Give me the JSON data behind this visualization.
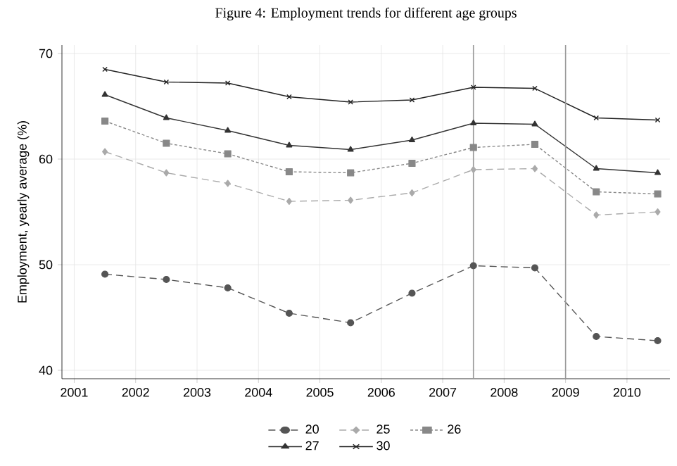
{
  "chart_data": {
    "type": "line",
    "title": "Figure 4: Employment trends for different age groups",
    "ylabel": "Employment, yearly average (%)",
    "x": [
      2001.5,
      2002.5,
      2003.5,
      2004.5,
      2005.5,
      2006.5,
      2007.5,
      2008.5,
      2009.5,
      2010.5
    ],
    "series": [
      {
        "name": "20",
        "color": "#555555",
        "marker": "circle",
        "line_style": "dashed",
        "values": [
          49.1,
          48.6,
          47.8,
          45.4,
          44.5,
          47.3,
          49.9,
          49.7,
          43.2,
          42.8
        ]
      },
      {
        "name": "25",
        "color": "#aaaaaa",
        "marker": "diamond",
        "line_style": "dashed",
        "values": [
          60.7,
          58.7,
          57.7,
          56.0,
          56.1,
          56.8,
          59.0,
          59.1,
          54.7,
          55.0
        ]
      },
      {
        "name": "26",
        "color": "#888888",
        "marker": "square",
        "line_style": "dotted",
        "values": [
          63.6,
          61.5,
          60.5,
          58.8,
          58.7,
          59.6,
          61.1,
          61.4,
          56.9,
          56.7
        ]
      },
      {
        "name": "27",
        "color": "#333333",
        "marker": "triangle",
        "line_style": "solid",
        "values": [
          66.1,
          63.9,
          62.7,
          61.3,
          60.9,
          61.8,
          63.4,
          63.3,
          59.1,
          58.7
        ]
      },
      {
        "name": "30",
        "color": "#222222",
        "marker": "cross",
        "line_style": "solid",
        "values": [
          68.5,
          67.3,
          67.2,
          65.9,
          65.4,
          65.6,
          66.8,
          66.7,
          63.9,
          63.7
        ]
      }
    ],
    "xlim": [
      2000.8,
      2010.7
    ],
    "ylim": [
      39.2,
      70.8
    ],
    "xticks": [
      2001,
      2002,
      2003,
      2004,
      2005,
      2006,
      2007,
      2008,
      2009,
      2010
    ],
    "yticks": [
      40,
      50,
      60,
      70
    ],
    "ref_lines": [
      {
        "axis": "x",
        "value": 2007.5,
        "color": "#999999"
      },
      {
        "axis": "x",
        "value": 2009,
        "color": "#999999"
      }
    ],
    "grid": true,
    "legend": "bottom"
  }
}
